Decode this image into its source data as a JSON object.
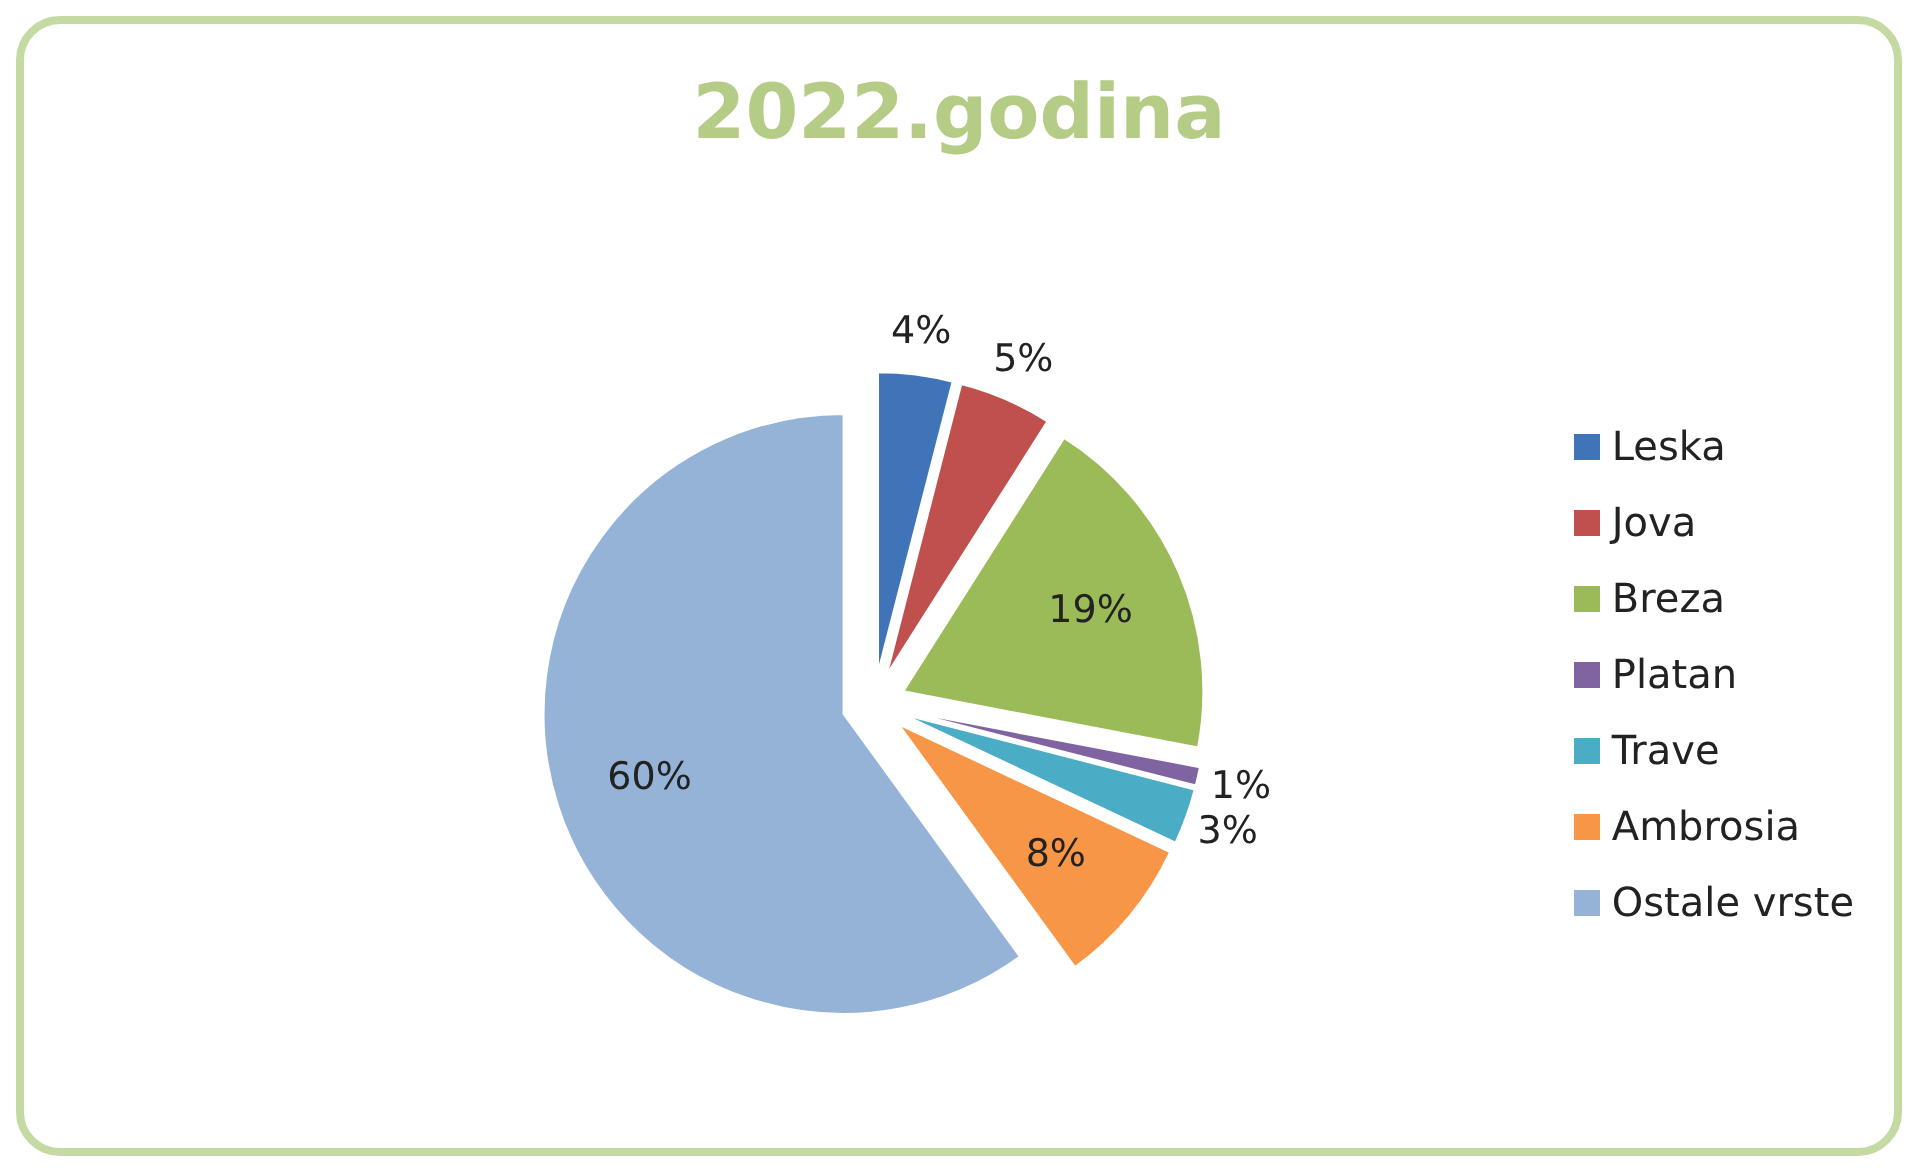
{
  "chart_data": {
    "type": "pie",
    "title": "2022.godina",
    "categories": [
      "Leska",
      "Jova",
      "Breza",
      "Platan",
      "Trave",
      "Ambrosia",
      "Ostale vrste"
    ],
    "values": [
      4,
      5,
      19,
      1,
      3,
      8,
      60
    ],
    "colors": [
      "#3f75b8",
      "#c0504d",
      "#9bbb59",
      "#8064a2",
      "#4bacc6",
      "#f79646",
      "#95b3d7"
    ],
    "value_labels": [
      "4%",
      "5%",
      "19%",
      "1%",
      "3%",
      "8%",
      "60%"
    ],
    "legend": "right"
  }
}
